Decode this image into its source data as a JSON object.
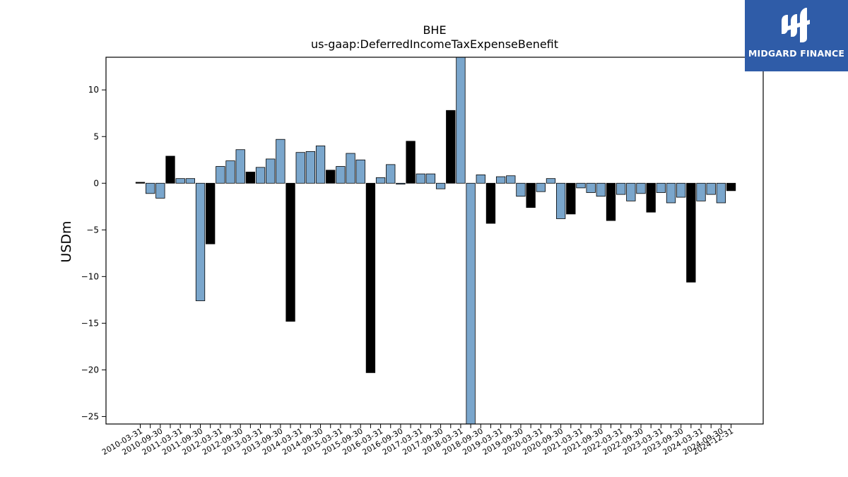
{
  "chart_data": {
    "type": "bar",
    "title": "BHE",
    "subtitle": "us-gaap:DeferredIncomeTaxExpenseBenefit",
    "xlabel": "",
    "ylabel": "USDm",
    "ylim": [
      -25.8,
      13.5
    ],
    "yticks": [
      10,
      5,
      0,
      -5,
      -10,
      -15,
      -20,
      -25
    ],
    "ytick_labels": [
      "10",
      "5",
      "0",
      "−5",
      "−10",
      "−15",
      "−20",
      "−25"
    ],
    "grid": false,
    "colors": {
      "quarter": "#7aa6cc",
      "annual": "#000000",
      "edge": "#000000"
    },
    "categories": [
      "2010-03-31",
      "2010-06-30",
      "2010-09-30",
      "2010-12-31",
      "2011-03-31",
      "2011-06-30",
      "2011-09-30",
      "2011-12-31",
      "2012-03-31",
      "2012-06-30",
      "2012-09-30",
      "2012-12-31",
      "2013-03-31",
      "2013-06-30",
      "2013-09-30",
      "2013-12-31",
      "2014-03-31",
      "2014-06-30",
      "2014-09-30",
      "2014-12-31",
      "2015-03-31",
      "2015-06-30",
      "2015-09-30",
      "2015-12-31",
      "2016-03-31",
      "2016-06-30",
      "2016-09-30",
      "2016-12-31",
      "2017-03-31",
      "2017-06-30",
      "2017-09-30",
      "2017-12-31",
      "2018-03-31",
      "2018-06-30",
      "2018-09-30",
      "2018-12-31",
      "2019-03-31",
      "2019-06-30",
      "2019-09-30",
      "2019-12-31",
      "2020-03-31",
      "2020-06-30",
      "2020-09-30",
      "2020-12-31",
      "2021-03-31",
      "2021-06-30",
      "2021-09-30",
      "2021-12-31",
      "2022-03-31",
      "2022-06-30",
      "2022-09-30",
      "2022-12-31",
      "2023-03-31",
      "2023-06-30",
      "2023-09-30",
      "2023-12-31",
      "2024-03-31",
      "2024-06-30",
      "2024-09-30",
      "2024-12-31"
    ],
    "values": [
      0.1,
      -1.1,
      -1.6,
      2.9,
      0.5,
      0.5,
      -12.6,
      -6.5,
      1.8,
      2.4,
      3.6,
      1.2,
      1.7,
      2.6,
      4.7,
      -14.8,
      3.3,
      3.4,
      4.0,
      1.4,
      1.8,
      3.2,
      2.5,
      -20.3,
      0.6,
      2.0,
      -0.1,
      4.5,
      1.0,
      1.0,
      -0.6,
      7.8,
      13.5,
      -25.8,
      0.9,
      -4.3,
      0.7,
      0.8,
      -1.4,
      -2.6,
      -0.9,
      0.5,
      -3.8,
      -3.3,
      -0.5,
      -1.0,
      -1.4,
      -4.0,
      -1.2,
      -1.9,
      -1.1,
      -3.1,
      -1.0,
      -2.1,
      -1.5,
      -10.6,
      -1.9,
      -1.2,
      -2.1,
      -0.8
    ],
    "annual": [
      true,
      false,
      false,
      true,
      false,
      false,
      false,
      true,
      false,
      false,
      false,
      true,
      false,
      false,
      false,
      true,
      false,
      false,
      false,
      true,
      false,
      false,
      false,
      true,
      false,
      false,
      false,
      true,
      false,
      false,
      false,
      true,
      false,
      false,
      false,
      true,
      false,
      false,
      false,
      true,
      false,
      false,
      false,
      true,
      false,
      false,
      false,
      true,
      false,
      false,
      false,
      true,
      false,
      false,
      false,
      true,
      false,
      false,
      false,
      true
    ],
    "xtick_label_every": 2
  },
  "logo": {
    "text": "MIDGARD FINANCE",
    "icon": "midgard-logo-icon"
  }
}
